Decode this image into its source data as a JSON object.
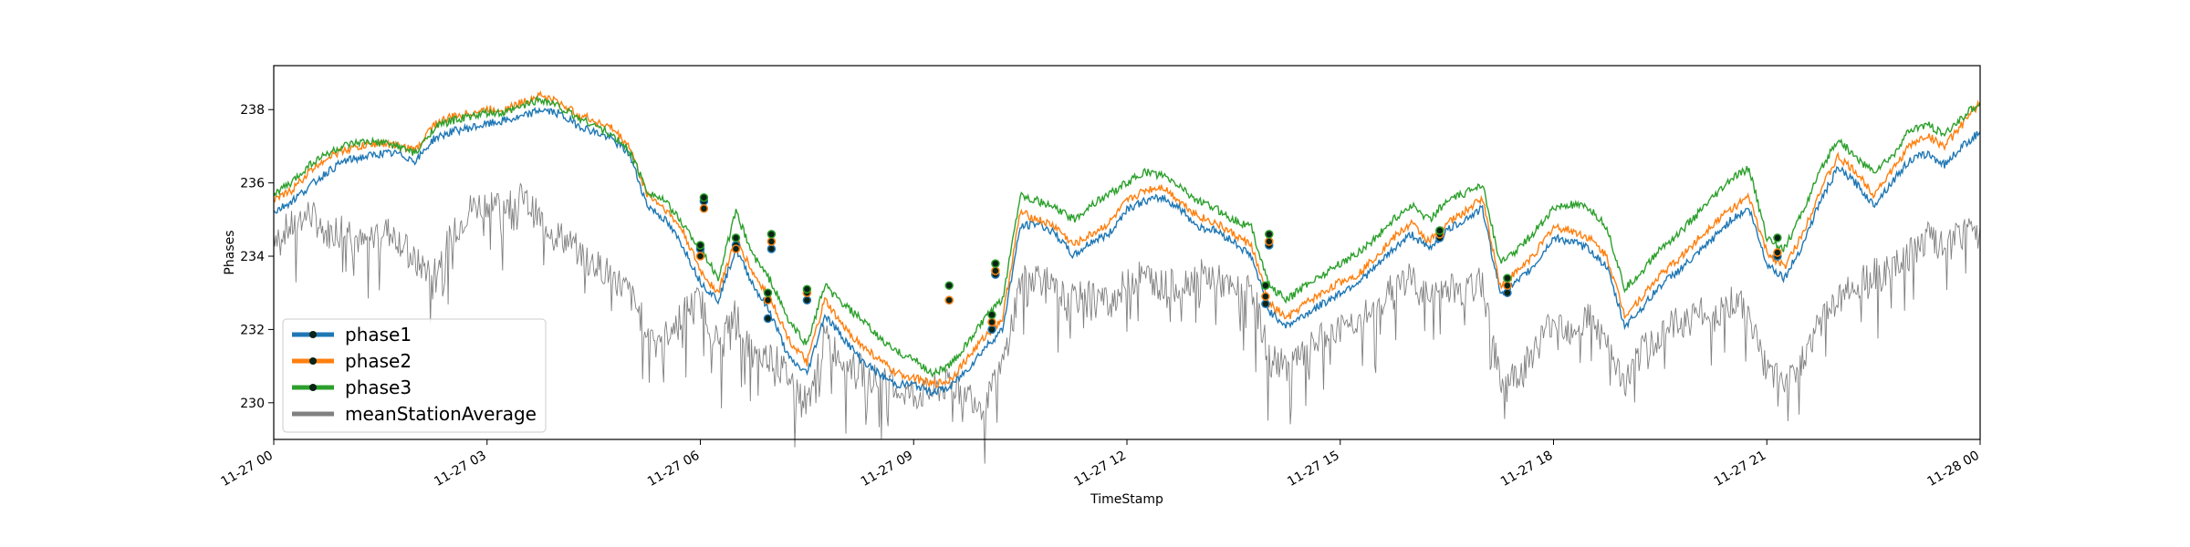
{
  "chart_data": {
    "type": "line",
    "title": "",
    "xlabel": "TimeStamp",
    "ylabel": "Phases",
    "x_range": [
      "2023-11-27 00:00",
      "2023-11-28 00:00"
    ],
    "ylim": [
      229.0,
      239.2
    ],
    "x_ticks": [
      "11-27 00",
      "11-27 03",
      "11-27 06",
      "11-27 09",
      "11-27 12",
      "11-27 15",
      "11-27 18",
      "11-27 21",
      "11-28 00"
    ],
    "x_tick_hours": [
      0,
      3,
      6,
      9,
      12,
      15,
      18,
      21,
      24
    ],
    "y_ticks": [
      230,
      232,
      234,
      236,
      238
    ],
    "grid": false,
    "legend_position": "lower-left",
    "hours": [
      0.0,
      0.25,
      0.5,
      0.75,
      1.0,
      1.25,
      1.5,
      1.75,
      2.0,
      2.25,
      2.5,
      2.75,
      3.0,
      3.25,
      3.5,
      3.75,
      4.0,
      4.25,
      4.5,
      4.75,
      5.0,
      5.25,
      5.5,
      5.75,
      6.0,
      6.25,
      6.5,
      6.75,
      7.0,
      7.25,
      7.5,
      7.75,
      8.0,
      8.25,
      8.5,
      8.75,
      9.0,
      9.25,
      9.5,
      9.75,
      10.0,
      10.25,
      10.5,
      10.75,
      11.0,
      11.25,
      11.5,
      11.75,
      12.0,
      12.25,
      12.5,
      12.75,
      13.0,
      13.25,
      13.5,
      13.75,
      14.0,
      14.25,
      14.5,
      14.75,
      15.0,
      15.25,
      15.5,
      15.75,
      16.0,
      16.25,
      16.5,
      16.75,
      17.0,
      17.25,
      17.5,
      17.75,
      18.0,
      18.25,
      18.5,
      18.75,
      19.0,
      19.25,
      19.5,
      19.75,
      20.0,
      20.25,
      20.5,
      20.75,
      21.0,
      21.25,
      21.5,
      21.75,
      22.0,
      22.25,
      22.5,
      22.75,
      23.0,
      23.25,
      23.5,
      23.75,
      24.0
    ],
    "series": [
      {
        "name": "phase1",
        "color": "#1f77b4",
        "values": [
          235.2,
          235.5,
          235.9,
          236.3,
          236.6,
          236.7,
          236.8,
          236.8,
          236.6,
          237.2,
          237.4,
          237.5,
          237.6,
          237.7,
          237.8,
          238.0,
          237.9,
          237.6,
          237.4,
          237.2,
          236.8,
          235.4,
          235.0,
          234.3,
          233.3,
          232.8,
          234.2,
          233.2,
          232.4,
          231.2,
          230.8,
          232.4,
          231.8,
          231.2,
          230.8,
          230.5,
          230.5,
          230.3,
          230.4,
          230.9,
          231.5,
          232.0,
          234.8,
          234.9,
          234.6,
          234.0,
          234.4,
          234.6,
          235.3,
          235.5,
          235.6,
          235.3,
          234.8,
          234.7,
          234.4,
          234.0,
          232.5,
          232.1,
          232.4,
          232.7,
          233.0,
          233.3,
          233.7,
          234.2,
          234.6,
          234.2,
          234.7,
          235.0,
          235.3,
          233.0,
          233.3,
          233.8,
          234.5,
          234.4,
          234.2,
          233.7,
          232.1,
          232.6,
          233.2,
          233.6,
          234.0,
          234.5,
          235.0,
          235.3,
          233.8,
          233.4,
          234.3,
          235.5,
          236.4,
          236.0,
          235.4,
          236.0,
          236.6,
          236.8,
          236.5,
          237.0,
          237.4
        ]
      },
      {
        "name": "phase2",
        "color": "#ff7f0e",
        "values": [
          235.5,
          235.8,
          236.3,
          236.7,
          236.9,
          237.0,
          237.1,
          237.0,
          236.9,
          237.6,
          237.8,
          237.9,
          238.0,
          238.0,
          238.2,
          238.4,
          238.2,
          237.9,
          237.7,
          237.5,
          237.0,
          235.7,
          235.3,
          234.7,
          233.6,
          233.0,
          234.5,
          233.5,
          232.8,
          231.7,
          231.1,
          232.8,
          232.1,
          231.6,
          231.2,
          230.8,
          230.7,
          230.5,
          230.6,
          231.2,
          231.8,
          232.3,
          235.2,
          235.0,
          234.8,
          234.3,
          234.6,
          234.9,
          235.5,
          235.8,
          235.9,
          235.5,
          235.1,
          234.9,
          234.6,
          234.3,
          232.7,
          232.3,
          232.7,
          233.0,
          233.3,
          233.5,
          234.0,
          234.5,
          234.9,
          234.4,
          234.9,
          235.2,
          235.6,
          233.2,
          233.6,
          234.1,
          234.8,
          234.7,
          234.5,
          234.0,
          232.4,
          232.9,
          233.5,
          233.9,
          234.4,
          234.9,
          235.3,
          235.6,
          234.1,
          233.7,
          234.6,
          235.8,
          236.7,
          236.3,
          235.7,
          236.3,
          237.0,
          237.3,
          237.0,
          237.6,
          238.2
        ]
      },
      {
        "name": "phase3",
        "color": "#2ca02c",
        "values": [
          235.7,
          236.0,
          236.5,
          236.8,
          237.0,
          237.1,
          237.1,
          237.0,
          236.8,
          237.5,
          237.7,
          237.8,
          237.9,
          237.9,
          238.1,
          238.3,
          238.1,
          237.8,
          237.6,
          237.3,
          236.9,
          235.8,
          235.5,
          234.9,
          234.2,
          233.4,
          235.2,
          234.0,
          233.3,
          232.2,
          231.6,
          233.2,
          232.7,
          232.3,
          231.8,
          231.4,
          231.2,
          230.8,
          231.0,
          231.6,
          232.3,
          232.8,
          235.7,
          235.5,
          235.3,
          235.0,
          235.4,
          235.7,
          236.0,
          236.3,
          236.2,
          235.9,
          235.5,
          235.3,
          235.0,
          234.8,
          233.2,
          232.8,
          233.2,
          233.5,
          233.8,
          234.1,
          234.5,
          235.0,
          235.4,
          235.0,
          235.5,
          235.7,
          236.0,
          233.8,
          234.2,
          234.7,
          235.3,
          235.4,
          235.3,
          234.8,
          233.1,
          233.6,
          234.2,
          234.6,
          235.1,
          235.6,
          236.1,
          236.4,
          234.5,
          234.2,
          235.2,
          236.3,
          237.2,
          236.7,
          236.3,
          236.7,
          237.4,
          237.6,
          237.3,
          237.8,
          238.2
        ]
      },
      {
        "name": "meanStationAverage",
        "color": "#808080",
        "values": [
          234.6,
          234.8,
          235.2,
          234.6,
          234.9,
          234.3,
          234.8,
          234.5,
          233.8,
          233.6,
          234.5,
          235.3,
          235.5,
          235.4,
          235.6,
          235.0,
          234.6,
          234.2,
          233.8,
          233.5,
          233.0,
          232.0,
          231.8,
          232.5,
          232.8,
          231.6,
          232.5,
          231.2,
          231.3,
          230.7,
          230.0,
          231.8,
          231.2,
          230.9,
          230.6,
          230.4,
          230.2,
          230.3,
          230.5,
          230.3,
          229.9,
          231.0,
          233.3,
          233.5,
          233.0,
          232.8,
          233.0,
          232.7,
          233.3,
          233.5,
          233.2,
          233.2,
          233.5,
          233.4,
          233.0,
          233.2,
          231.2,
          231.0,
          231.3,
          231.8,
          232.0,
          232.3,
          232.5,
          233.2,
          233.4,
          232.8,
          233.2,
          233.0,
          233.3,
          230.5,
          230.8,
          231.5,
          232.3,
          232.0,
          232.4,
          231.5,
          230.5,
          231.4,
          231.9,
          232.2,
          232.5,
          232.3,
          232.8,
          232.5,
          230.8,
          230.5,
          231.2,
          232.2,
          233.0,
          233.2,
          233.5,
          233.6,
          234.0,
          234.5,
          234.2,
          234.6,
          234.8
        ]
      }
    ],
    "markers": [
      {
        "hour": 6.0,
        "values": [
          234.2,
          234.0,
          234.3
        ]
      },
      {
        "hour": 6.05,
        "values": [
          235.5,
          235.3,
          235.6
        ]
      },
      {
        "hour": 6.5,
        "values": [
          234.3,
          234.2,
          234.5
        ]
      },
      {
        "hour": 6.95,
        "values": [
          232.3,
          232.8,
          233.0
        ]
      },
      {
        "hour": 7.0,
        "values": [
          234.2,
          234.4,
          234.6
        ]
      },
      {
        "hour": 7.5,
        "values": [
          232.8,
          233.0,
          233.1
        ]
      },
      {
        "hour": 9.5,
        "values": [
          232.8,
          232.8,
          233.2
        ]
      },
      {
        "hour": 10.1,
        "values": [
          232.0,
          232.2,
          232.4
        ]
      },
      {
        "hour": 10.15,
        "values": [
          233.5,
          233.6,
          233.8
        ]
      },
      {
        "hour": 13.95,
        "values": [
          232.7,
          232.9,
          233.2
        ]
      },
      {
        "hour": 14.0,
        "values": [
          234.3,
          234.4,
          234.6
        ]
      },
      {
        "hour": 16.4,
        "values": [
          234.5,
          234.6,
          234.7
        ]
      },
      {
        "hour": 17.35,
        "values": [
          233.0,
          233.2,
          233.4
        ]
      },
      {
        "hour": 21.15,
        "values": [
          234.0,
          234.1,
          234.5
        ]
      }
    ]
  }
}
